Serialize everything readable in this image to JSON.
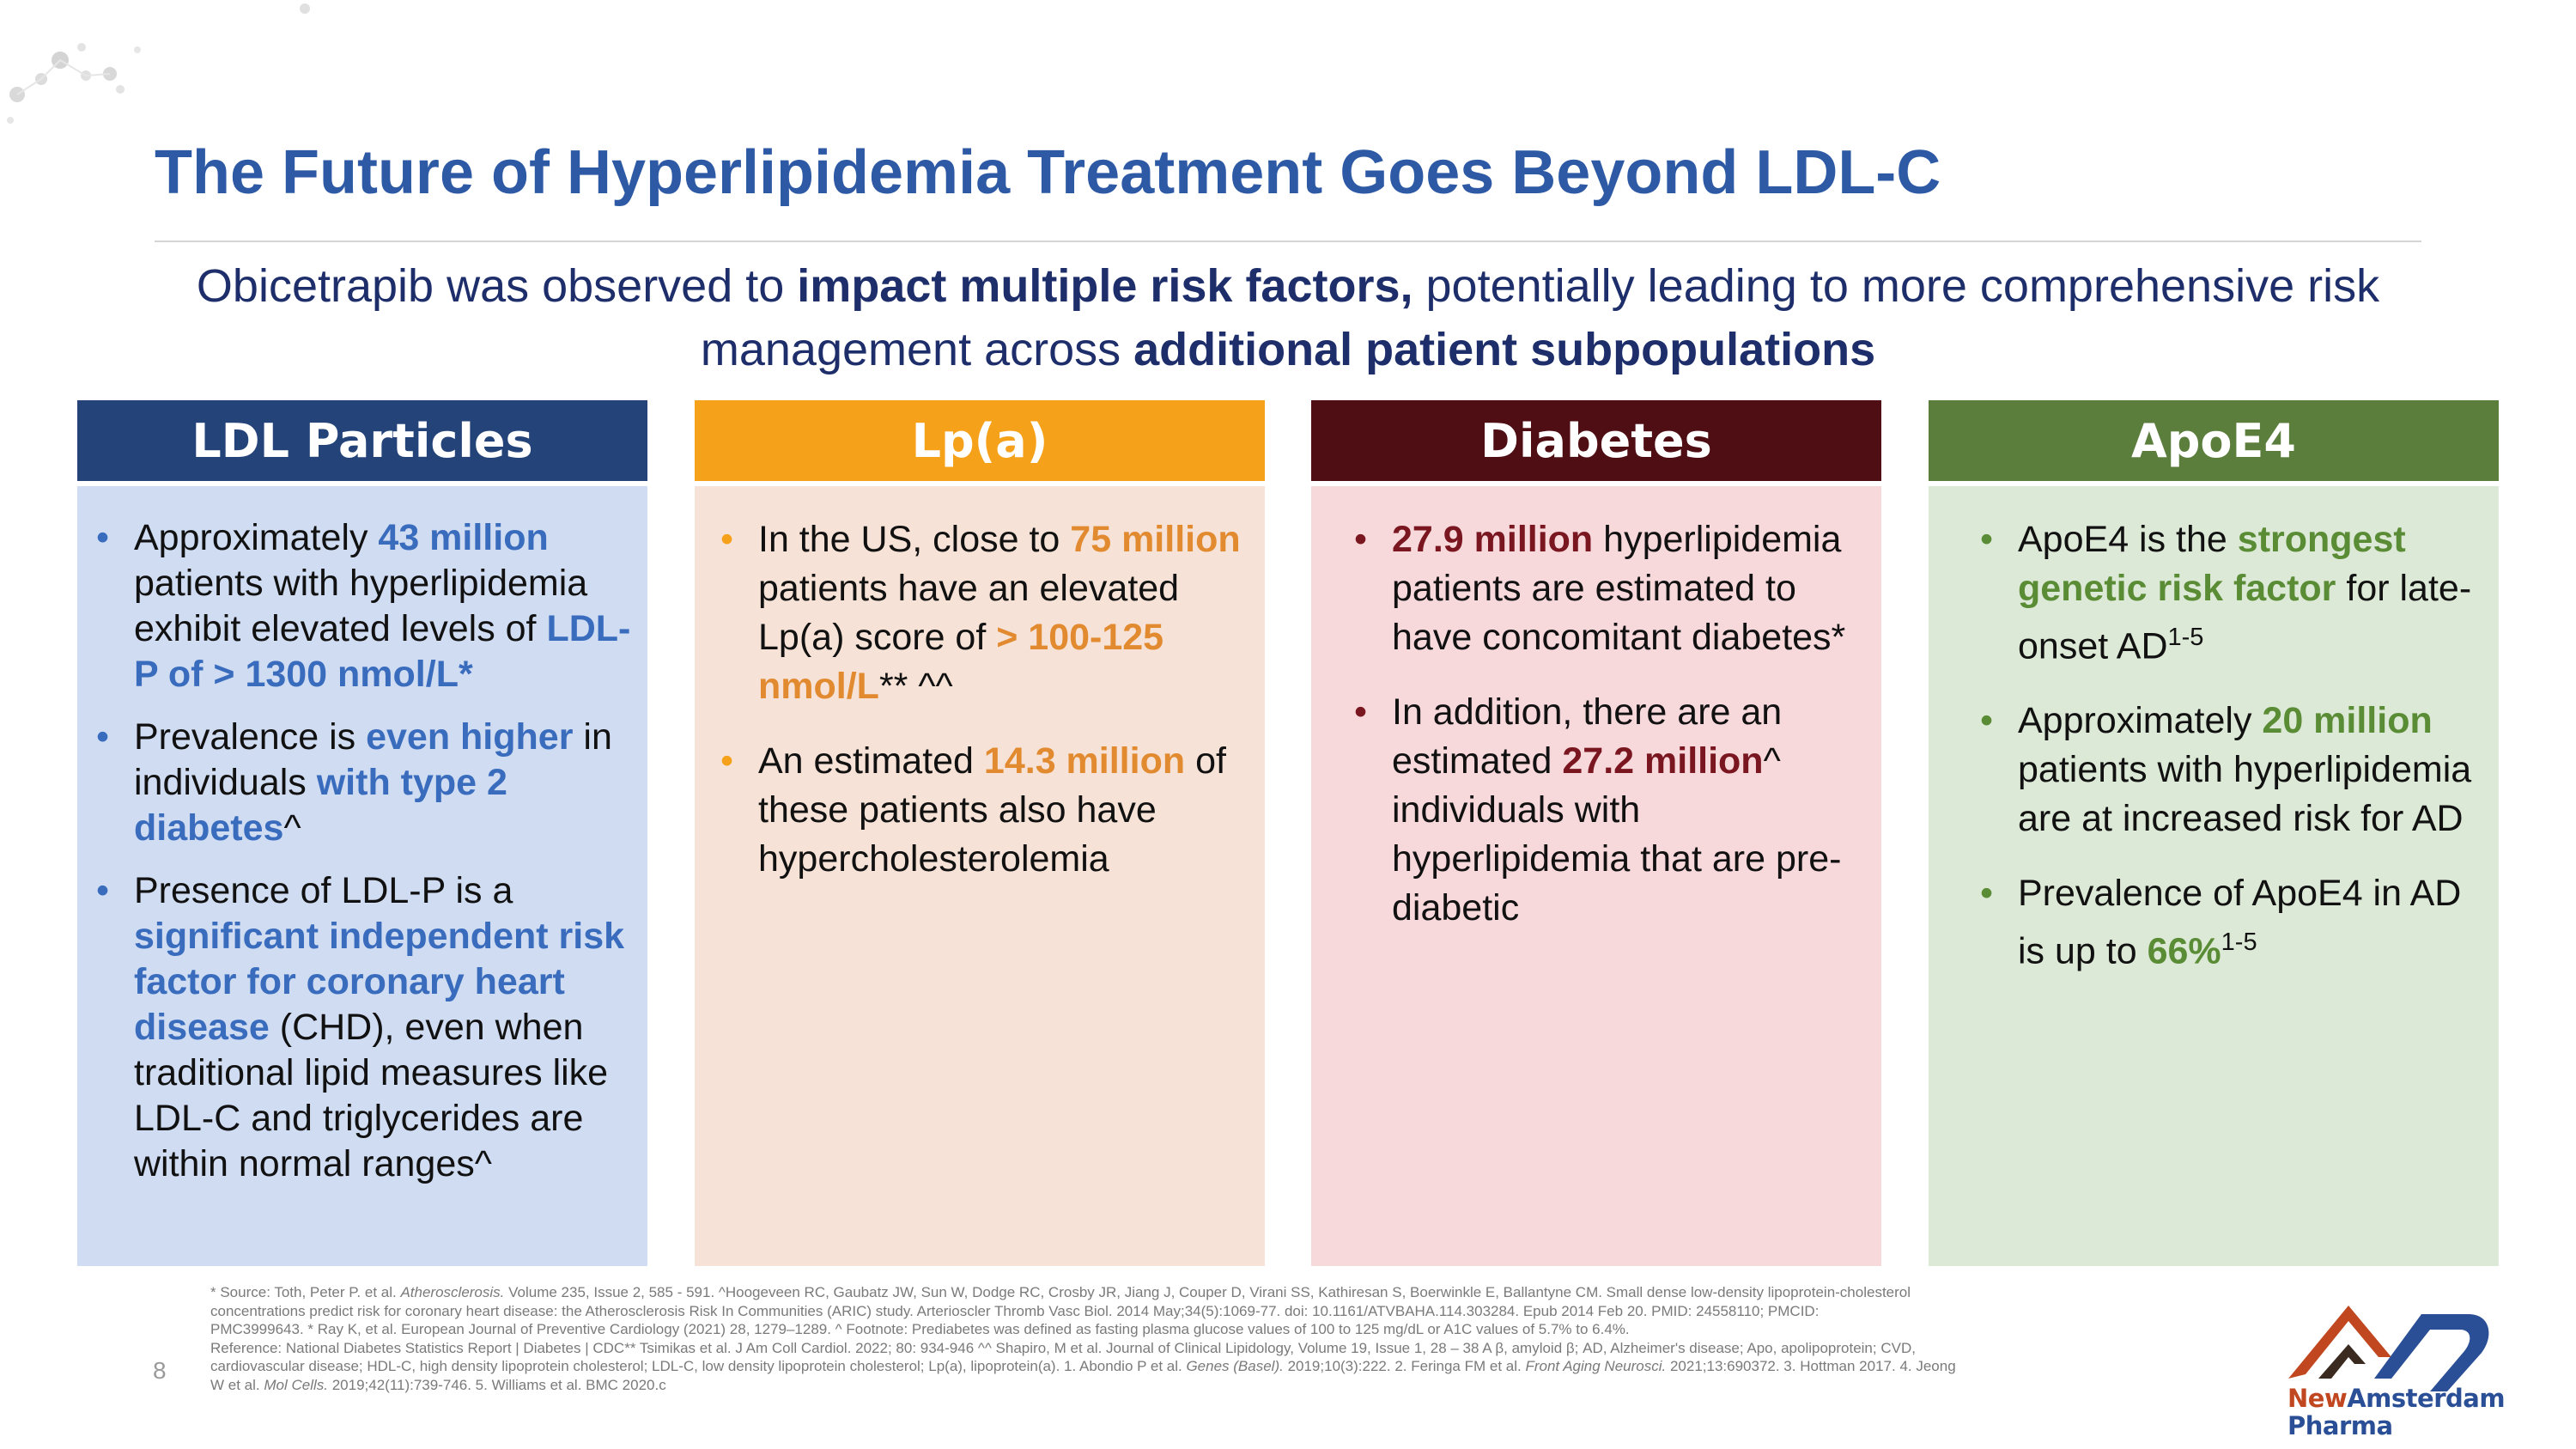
{
  "title": "The Future of Hyperlipidemia Treatment Goes Beyond LDL-C",
  "subtitle": {
    "part1": "Obicetrapib was observed to ",
    "bold1": "impact multiple risk factors,",
    "part2": " potentially leading to more comprehensive risk management across ",
    "bold2": "additional patient subpopulations"
  },
  "colors": {
    "ldl_head": "#234379",
    "ldl_body": "#cfdcf2",
    "ldl_accent": "#3a6cbe",
    "lpa_head": "#f6a11a",
    "lpa_body": "#f6e2d6",
    "lpa_accent": "#e28a30",
    "diab_head": "#4f0d14",
    "diab_body": "#f7d9dc",
    "diab_accent": "#7a1620",
    "apoe_head": "#5b7e3c",
    "apoe_body": "#dde9d7",
    "apoe_accent": "#5a8c35"
  },
  "bullet_char": "•",
  "columns": {
    "ldl": {
      "header": "LDL Particles",
      "b1": {
        "t1": "Approximately ",
        "h1": "43 million",
        "t2": " patients with hyperlipidemia exhibit elevated levels of ",
        "h2": "LDL-P of > 1300 nmol/L*"
      },
      "b2": {
        "t1": "Prevalence is ",
        "h1": "even higher",
        "t2": " in individuals ",
        "h2": "with type 2 diabetes",
        "t3": "^"
      },
      "b3": {
        "t1": "Presence of LDL-P is a ",
        "h1": "significant independent risk factor for coronary heart disease",
        "t2": " (CHD), even when traditional lipid measures like LDL-C and triglycerides are within normal ranges^"
      }
    },
    "lpa": {
      "header": "Lp(a)",
      "b1": {
        "t1": "In the US, close to ",
        "h1": "75 million",
        "t2": " patients have an elevated Lp(a) score of ",
        "h2": "> 100-125 nmol/L",
        "t3": "** ^^"
      },
      "b2": {
        "t1": "An estimated ",
        "h1": "14.3 million",
        "t2": " of these patients also have hypercholesterolemia"
      }
    },
    "diabetes": {
      "header": "Diabetes",
      "b1": {
        "h1": "27.9 million",
        "t1": " hyperlipidemia patients are estimated to have concomitant diabetes*"
      },
      "b2": {
        "t1": "In addition, there are an estimated ",
        "h1": "27.2 million",
        "t2": "^ individuals with hyperlipidemia that are pre-diabetic"
      }
    },
    "apoe4": {
      "header": "ApoE4",
      "b1": {
        "t1": "ApoE4 is the ",
        "h1": "strongest genetic risk factor",
        "t2": " for late-onset AD",
        "sup": "1-5"
      },
      "b2": {
        "t1": "Approximately ",
        "h1": "20 million",
        "t2": " patients with hyperlipidemia are at increased risk for AD"
      },
      "b3": {
        "t1": "Prevalence of ApoE4 in AD is up to ",
        "h1": "66%",
        "sup": "1-5"
      }
    }
  },
  "footer": {
    "l1a": "* Source:  Toth, Peter P. et al.  ",
    "l1i": "Atherosclerosis.",
    "l1b": " Volume 235, Issue 2, 585 - 591. ^Hoogeveen RC, Gaubatz JW, Sun W, Dodge RC, Crosby JR, Jiang J, Couper D, Virani SS, Kathiresan S, Boerwinkle E, Ballantyne CM. Small dense low-density lipoprotein-cholesterol",
    "l2": "concentrations predict risk for coronary heart disease: the Atherosclerosis Risk In Communities (ARIC) study. Arterioscler Thromb Vasc Biol. 2014 May;34(5):1069-77. doi: 10.1161/ATVBAHA.114.303284. Epub 2014 Feb 20. PMID: 24558110; PMCID:",
    "l3": "PMC3999643. * Ray K, et al.   European Journal of Preventive Cardiology (2021) 28, 1279–1289. ^ Footnote:  Prediabetes was defined as fasting plasma glucose values of 100 to 125 mg/dL or A1C values of 5.7% to 6.4%.",
    "l4": "Reference:  National Diabetes Statistics Report | Diabetes | CDC** Tsimikas et al.  J Am Coll Cardiol. 2022; 80: 934-946  ^^  Shapiro, M et al. Journal of Clinical Lipidology, Volume 19, Issue 1, 28 – 38 A  β, amyloid β; AD, Alzheimer's disease; Apo, apolipoprotein; CVD,",
    "l5a": "cardiovascular disease; HDL-C, high density lipoprotein cholesterol; LDL-C, low density lipoprotein cholesterol; Lp(a), lipoprotein(a). 1. Abondio P et al.  ",
    "l5i1": "Genes (Basel).",
    "l5b": " 2019;10(3):222. 2. Feringa FM et al. ",
    "l5i2": "Front Aging Neurosci.",
    "l5c": " 2021;13:690372. 3. Hottman 2017. 4. Jeong",
    "l6a": "W et al. ",
    "l6i": "Mol Cells.",
    "l6b": " 2019;42(11):739-746. 5. Williams et al. BMC 2020.c"
  },
  "page_number": "8",
  "logo": {
    "line1_a": "New",
    "line1_b": "Amsterdam",
    "line2": "Pharma"
  }
}
